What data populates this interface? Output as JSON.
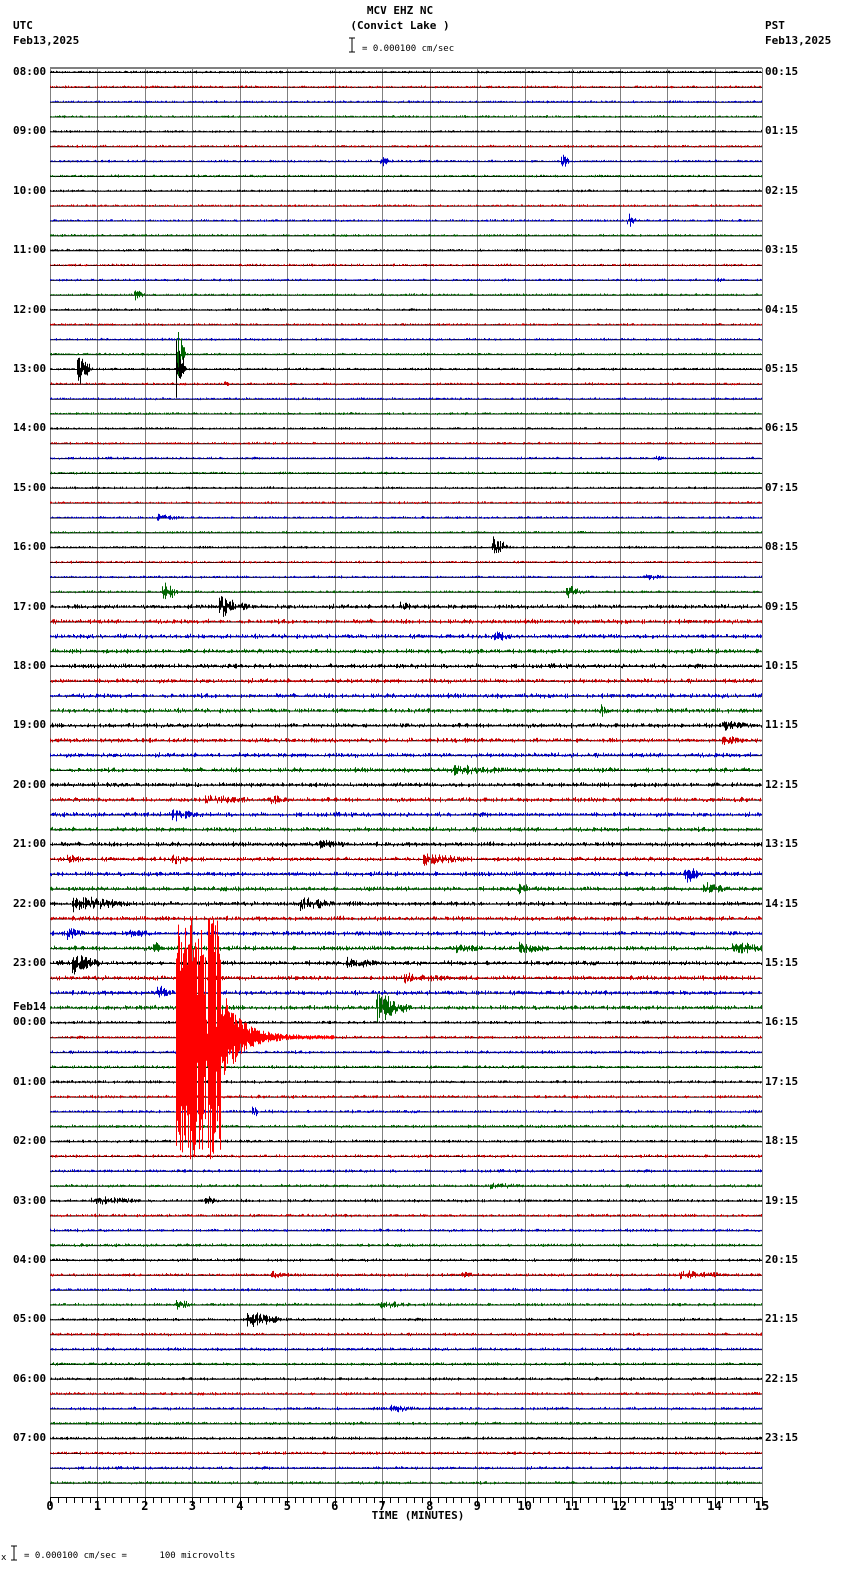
{
  "header": {
    "station": "MCV EHZ NC",
    "location": "(Convict Lake )",
    "scale_text": "= 0.000100 cm/sec",
    "left_tz": "UTC",
    "left_date": "Feb13,2025",
    "right_tz": "PST",
    "right_date": "Feb13,2025"
  },
  "footer": {
    "scale_text": "= 0.000100 cm/sec =      100 microvolts",
    "scale_prefix": "x"
  },
  "colors": {
    "trace_cycle": [
      "#000000",
      "#cc0000",
      "#0000cc",
      "#006600"
    ],
    "grid": "#808080",
    "baseline": "#000000",
    "event_main": "#ff0000"
  },
  "chart_data": {
    "type": "line",
    "title": "MCV EHZ NC (Convict Lake )",
    "subtitle": "I = 0.000100 cm/sec",
    "xlabel": "TIME (MINUTES)",
    "ylabel": "",
    "xlim": [
      0,
      15
    ],
    "x_ticks": [
      "0",
      "1",
      "2",
      "3",
      "4",
      "5",
      "6",
      "7",
      "8",
      "9",
      "10",
      "11",
      "12",
      "13",
      "14",
      "15"
    ],
    "traces_per_hour": 4,
    "minutes_per_trace": 15,
    "left_labels": [
      {
        "row": 0,
        "text": "08:00"
      },
      {
        "row": 4,
        "text": "09:00"
      },
      {
        "row": 8,
        "text": "10:00"
      },
      {
        "row": 12,
        "text": "11:00"
      },
      {
        "row": 16,
        "text": "12:00"
      },
      {
        "row": 20,
        "text": "13:00"
      },
      {
        "row": 24,
        "text": "14:00"
      },
      {
        "row": 28,
        "text": "15:00"
      },
      {
        "row": 32,
        "text": "16:00"
      },
      {
        "row": 36,
        "text": "17:00"
      },
      {
        "row": 40,
        "text": "18:00"
      },
      {
        "row": 44,
        "text": "19:00"
      },
      {
        "row": 48,
        "text": "20:00"
      },
      {
        "row": 52,
        "text": "21:00"
      },
      {
        "row": 56,
        "text": "22:00"
      },
      {
        "row": 60,
        "text": "23:00"
      },
      {
        "row": 64,
        "text": "00:00",
        "date": "Feb14"
      },
      {
        "row": 68,
        "text": "01:00"
      },
      {
        "row": 72,
        "text": "02:00"
      },
      {
        "row": 76,
        "text": "03:00"
      },
      {
        "row": 80,
        "text": "04:00"
      },
      {
        "row": 84,
        "text": "05:00"
      },
      {
        "row": 88,
        "text": "06:00"
      },
      {
        "row": 92,
        "text": "07:00"
      }
    ],
    "right_labels": [
      {
        "row": 0,
        "text": "00:15"
      },
      {
        "row": 4,
        "text": "01:15"
      },
      {
        "row": 8,
        "text": "02:15"
      },
      {
        "row": 12,
        "text": "03:15"
      },
      {
        "row": 16,
        "text": "04:15"
      },
      {
        "row": 20,
        "text": "05:15"
      },
      {
        "row": 24,
        "text": "06:15"
      },
      {
        "row": 28,
        "text": "07:15"
      },
      {
        "row": 32,
        "text": "08:15"
      },
      {
        "row": 36,
        "text": "09:15"
      },
      {
        "row": 40,
        "text": "10:15"
      },
      {
        "row": 44,
        "text": "11:15"
      },
      {
        "row": 48,
        "text": "12:15"
      },
      {
        "row": 52,
        "text": "13:15"
      },
      {
        "row": 56,
        "text": "14:15"
      },
      {
        "row": 60,
        "text": "15:15"
      },
      {
        "row": 64,
        "text": "16:15"
      },
      {
        "row": 68,
        "text": "17:15"
      },
      {
        "row": 72,
        "text": "18:15"
      },
      {
        "row": 76,
        "text": "19:15"
      },
      {
        "row": 80,
        "text": "20:15"
      },
      {
        "row": 84,
        "text": "21:15"
      },
      {
        "row": 88,
        "text": "22:15"
      },
      {
        "row": 92,
        "text": "23:15"
      }
    ],
    "noise_by_row_range": [
      {
        "from": 0,
        "to": 35,
        "amp": 1.2
      },
      {
        "from": 36,
        "to": 63,
        "amp": 2.2
      },
      {
        "from": 64,
        "to": 95,
        "amp": 1.5
      }
    ],
    "events": [
      {
        "row": 6,
        "minute": 7.0,
        "amp": 5,
        "dur": 0.2
      },
      {
        "row": 6,
        "minute": 10.8,
        "amp": 7,
        "dur": 0.15
      },
      {
        "row": 10,
        "minute": 12.2,
        "amp": 7,
        "dur": 0.15
      },
      {
        "row": 14,
        "minute": 14.1,
        "amp": 2,
        "dur": 0.1
      },
      {
        "row": 15,
        "minute": 1.8,
        "amp": 6,
        "dur": 0.2
      },
      {
        "row": 19,
        "minute": 2.7,
        "amp": 34,
        "dur": 0.15
      },
      {
        "row": 20,
        "minute": 0.6,
        "amp": 22,
        "dur": 0.3
      },
      {
        "row": 20,
        "minute": 2.7,
        "amp": 34,
        "dur": 0.15
      },
      {
        "row": 21,
        "minute": 3.7,
        "amp": 2,
        "dur": 0.1
      },
      {
        "row": 26,
        "minute": 12.8,
        "amp": 2,
        "dur": 0.1
      },
      {
        "row": 30,
        "minute": 2.3,
        "amp": 3,
        "dur": 0.5
      },
      {
        "row": 32,
        "minute": 9.35,
        "amp": 12,
        "dur": 0.3
      },
      {
        "row": 34,
        "minute": 12.6,
        "amp": 3,
        "dur": 0.3
      },
      {
        "row": 35,
        "minute": 2.4,
        "amp": 12,
        "dur": 0.3
      },
      {
        "row": 35,
        "minute": 10.9,
        "amp": 6,
        "dur": 0.4
      },
      {
        "row": 36,
        "minute": 3.6,
        "amp": 12,
        "dur": 0.6
      },
      {
        "row": 36,
        "minute": 7.4,
        "amp": 4,
        "dur": 0.2
      },
      {
        "row": 38,
        "minute": 9.4,
        "amp": 4,
        "dur": 0.3
      },
      {
        "row": 43,
        "minute": 11.6,
        "amp": 6,
        "dur": 0.2
      },
      {
        "row": 44,
        "minute": 14.2,
        "amp": 4,
        "dur": 0.6
      },
      {
        "row": 45,
        "minute": 14.2,
        "amp": 4,
        "dur": 0.4
      },
      {
        "row": 47,
        "minute": 8.5,
        "amp": 5,
        "dur": 1.2
      },
      {
        "row": 49,
        "minute": 3.3,
        "amp": 4,
        "dur": 1.0
      },
      {
        "row": 49,
        "minute": 4.7,
        "amp": 4,
        "dur": 0.3
      },
      {
        "row": 50,
        "minute": 2.6,
        "amp": 6,
        "dur": 0.5
      },
      {
        "row": 52,
        "minute": 5.7,
        "amp": 3,
        "dur": 0.6
      },
      {
        "row": 53,
        "minute": 0.4,
        "amp": 4,
        "dur": 0.3
      },
      {
        "row": 53,
        "minute": 2.6,
        "amp": 5,
        "dur": 0.3
      },
      {
        "row": 53,
        "minute": 7.9,
        "amp": 6,
        "dur": 0.8
      },
      {
        "row": 54,
        "minute": 13.4,
        "amp": 8,
        "dur": 0.4
      },
      {
        "row": 55,
        "minute": 9.9,
        "amp": 5,
        "dur": 0.4
      },
      {
        "row": 55,
        "minute": 13.8,
        "amp": 5,
        "dur": 0.5
      },
      {
        "row": 56,
        "minute": 0.5,
        "amp": 8,
        "dur": 1.2
      },
      {
        "row": 56,
        "minute": 5.3,
        "amp": 6,
        "dur": 0.7
      },
      {
        "row": 58,
        "minute": 0.4,
        "amp": 8,
        "dur": 0.3
      },
      {
        "row": 58,
        "minute": 1.7,
        "amp": 4,
        "dur": 0.4
      },
      {
        "row": 59,
        "minute": 2.2,
        "amp": 5,
        "dur": 0.2
      },
      {
        "row": 59,
        "minute": 8.6,
        "amp": 4,
        "dur": 0.5
      },
      {
        "row": 59,
        "minute": 9.9,
        "amp": 5,
        "dur": 0.6
      },
      {
        "row": 59,
        "minute": 14.4,
        "amp": 6,
        "dur": 0.7
      },
      {
        "row": 60,
        "minute": 0.5,
        "amp": 10,
        "dur": 0.6
      },
      {
        "row": 60,
        "minute": 6.3,
        "amp": 5,
        "dur": 0.6
      },
      {
        "row": 61,
        "minute": 7.5,
        "amp": 4,
        "dur": 1.0
      },
      {
        "row": 62,
        "minute": 2.3,
        "amp": 6,
        "dur": 0.3
      },
      {
        "row": 63,
        "minute": 6.9,
        "amp": 18,
        "dur": 0.7
      },
      {
        "row": 70,
        "minute": 4.3,
        "amp": 8,
        "dur": 0.1
      },
      {
        "row": 75,
        "minute": 9.3,
        "amp": 3,
        "dur": 0.6
      },
      {
        "row": 76,
        "minute": 0.9,
        "amp": 5,
        "dur": 1.0
      },
      {
        "row": 76,
        "minute": 3.3,
        "amp": 4,
        "dur": 0.3
      },
      {
        "row": 81,
        "minute": 4.7,
        "amp": 4,
        "dur": 0.3
      },
      {
        "row": 81,
        "minute": 8.7,
        "amp": 4,
        "dur": 0.2
      },
      {
        "row": 81,
        "minute": 13.3,
        "amp": 4,
        "dur": 1.0
      },
      {
        "row": 83,
        "minute": 2.7,
        "amp": 5,
        "dur": 0.3
      },
      {
        "row": 83,
        "minute": 7.0,
        "amp": 4,
        "dur": 0.6
      },
      {
        "row": 84,
        "minute": 4.2,
        "amp": 9,
        "dur": 0.7
      },
      {
        "row": 90,
        "minute": 7.2,
        "amp": 3,
        "dur": 0.6
      }
    ],
    "main_event": {
      "description": "Large red earthquake signal spanning multiple traces",
      "start_row": 57,
      "end_row": 73,
      "center_row": 65,
      "minute_start": 2.65,
      "minute_peak_end": 3.6,
      "coda_end_minute": 6.0,
      "color": "#ff0000"
    }
  }
}
